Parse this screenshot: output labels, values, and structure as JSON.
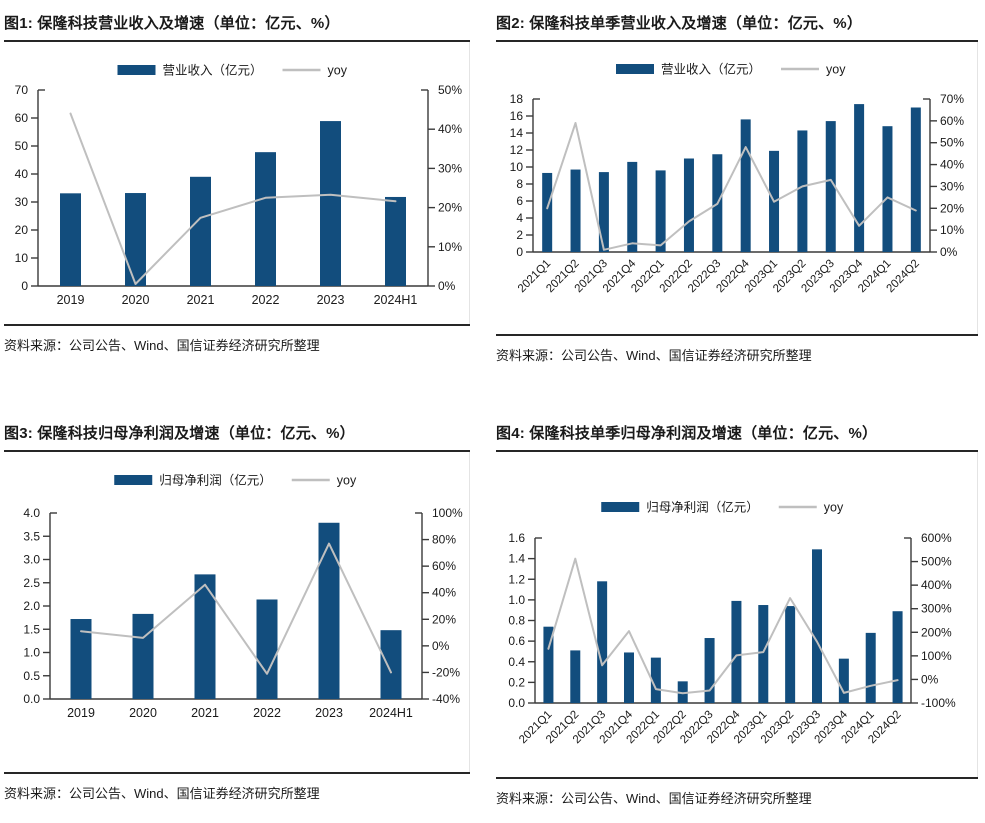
{
  "colors": {
    "bar": "#124d7d",
    "line": "#bfbfbf",
    "axis": "#3a3a3a",
    "text": "#1a1a1a",
    "title_rule": "#262626",
    "chart_frame": "#e4e4e4"
  },
  "chart_data": [
    {
      "type": "bar+line",
      "title": "图1: 保隆科技营业收入及增速（单位：亿元、%）",
      "source": "资料来源：公司公告、Wind、国信证券经济研究所整理",
      "legend": [
        {
          "label": "营业收入（亿元）",
          "marker": "bar"
        },
        {
          "label": "yoy",
          "marker": "line"
        }
      ],
      "categories": [
        "2019",
        "2020",
        "2021",
        "2022",
        "2023",
        "2024H1"
      ],
      "series": [
        {
          "name": "营业收入（亿元）",
          "type": "bar",
          "axis": "left",
          "values": [
            33.1,
            33.2,
            39.0,
            47.8,
            58.9,
            31.8
          ]
        },
        {
          "name": "yoy",
          "type": "line",
          "axis": "right",
          "values": [
            44,
            0.5,
            17.4,
            22.5,
            23.3,
            21.6
          ]
        }
      ],
      "left_axis": {
        "min": 0,
        "max": 70,
        "step": 10,
        "decimals": 0
      },
      "right_axis": {
        "min": 0,
        "max": 50,
        "step": 10,
        "suffix": "%"
      },
      "grid": false,
      "legend_position": "top-center"
    },
    {
      "type": "bar+line",
      "title": "图2: 保隆科技单季营业收入及增速（单位：亿元、%）",
      "source": "资料来源：公司公告、Wind、国信证券经济研究所整理",
      "legend": [
        {
          "label": "营业收入（亿元）",
          "marker": "bar"
        },
        {
          "label": "yoy",
          "marker": "line"
        }
      ],
      "categories": [
        "2021Q1",
        "2021Q2",
        "2021Q3",
        "2021Q4",
        "2022Q1",
        "2022Q2",
        "2022Q3",
        "2022Q4",
        "2023Q1",
        "2023Q2",
        "2023Q3",
        "2023Q4",
        "2024Q1",
        "2024Q2"
      ],
      "series": [
        {
          "name": "营业收入（亿元）",
          "type": "bar",
          "axis": "left",
          "values": [
            9.3,
            9.7,
            9.4,
            10.6,
            9.6,
            11.0,
            11.5,
            15.6,
            11.9,
            14.3,
            15.4,
            17.4,
            14.8,
            17.0
          ]
        },
        {
          "name": "yoy",
          "type": "line",
          "axis": "right",
          "values": [
            20,
            59,
            1,
            4,
            3,
            14,
            22,
            48,
            23,
            30,
            33,
            12,
            25,
            19
          ]
        }
      ],
      "left_axis": {
        "min": 0,
        "max": 18,
        "step": 2,
        "decimals": 0
      },
      "right_axis": {
        "min": 0,
        "max": 70,
        "step": 10,
        "suffix": "%"
      },
      "grid": false,
      "legend_position": "top-center"
    },
    {
      "type": "bar+line",
      "title": "图3: 保隆科技归母净利润及增速（单位：亿元、%）",
      "source": "资料来源：公司公告、Wind、国信证券经济研究所整理",
      "legend": [
        {
          "label": "归母净利润（亿元）",
          "marker": "bar"
        },
        {
          "label": "yoy",
          "marker": "line"
        }
      ],
      "categories": [
        "2019",
        "2020",
        "2021",
        "2022",
        "2023",
        "2024H1"
      ],
      "series": [
        {
          "name": "归母净利润（亿元）",
          "type": "bar",
          "axis": "left",
          "values": [
            1.72,
            1.83,
            2.68,
            2.14,
            3.79,
            1.48
          ]
        },
        {
          "name": "yoy",
          "type": "line",
          "axis": "right",
          "values": [
            11,
            6,
            46,
            -21,
            77,
            -20
          ]
        }
      ],
      "left_axis": {
        "min": 0,
        "max": 4.0,
        "step": 0.5,
        "decimals": 1
      },
      "right_axis": {
        "min": -40,
        "max": 100,
        "step": 20,
        "suffix": "%"
      },
      "grid": false,
      "legend_position": "top-center"
    },
    {
      "type": "bar+line",
      "title": "图4: 保隆科技单季归母净利润及增速（单位：亿元、%）",
      "source": "资料来源：公司公告、Wind、国信证券经济研究所整理",
      "legend": [
        {
          "label": "归母净利润（亿元）",
          "marker": "bar"
        },
        {
          "label": "yoy",
          "marker": "line"
        }
      ],
      "categories": [
        "2021Q1",
        "2021Q2",
        "2021Q3",
        "2021Q4",
        "2022Q1",
        "2022Q2",
        "2022Q3",
        "2022Q4",
        "2023Q1",
        "2023Q2",
        "2023Q3",
        "2023Q4",
        "2024Q1",
        "2024Q2"
      ],
      "series": [
        {
          "name": "归母净利润（亿元）",
          "type": "bar",
          "axis": "left",
          "values": [
            0.74,
            0.51,
            1.18,
            0.49,
            0.44,
            0.21,
            0.63,
            0.99,
            0.95,
            0.94,
            1.49,
            0.43,
            0.68,
            0.89
          ]
        },
        {
          "name": "yoy",
          "type": "line",
          "axis": "right",
          "values": [
            130,
            512,
            60,
            205,
            -41,
            -59,
            -47,
            102,
            116,
            345,
            160,
            -57,
            -27,
            -3
          ]
        }
      ],
      "left_axis": {
        "min": 0,
        "max": 1.6,
        "step": 0.2,
        "decimals": 1
      },
      "right_axis": {
        "min": -100,
        "max": 600,
        "step": 100,
        "suffix": "%"
      },
      "grid": false,
      "legend_position": "top-center"
    }
  ]
}
